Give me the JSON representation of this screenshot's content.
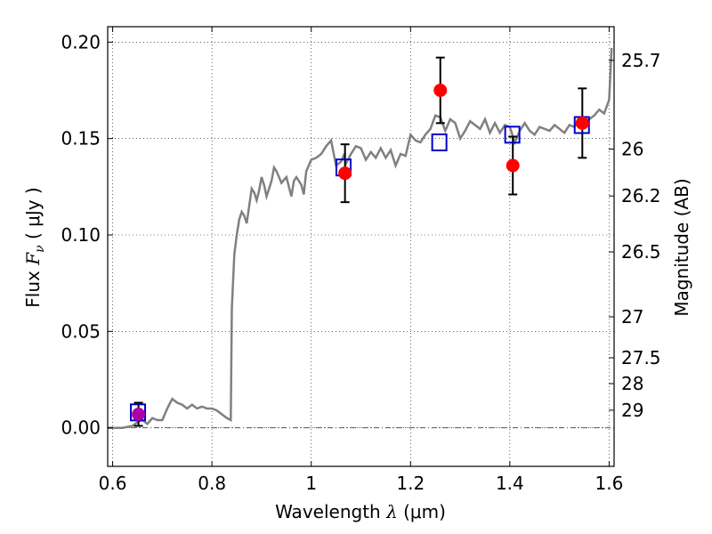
{
  "chart_data": {
    "type": "scatter",
    "title": "",
    "xlabel": "Wavelength  λ (μm)",
    "xlabel_prefix": "Wavelength  ",
    "xlabel_symbol": "λ",
    "xlabel_unit": " (μm)",
    "ylabel": "Flux  Fν  ( μJy )",
    "ylabel_prefix": "Flux  ",
    "ylabel_symbol": "F",
    "ylabel_subscript": "ν",
    "ylabel_unit": "  ( μJy )",
    "y2label": "Magnitude (AB)",
    "xlim": [
      0.59,
      1.61
    ],
    "ylim": [
      -0.02,
      0.208
    ],
    "grid": true,
    "x_ticks": [
      {
        "value": 0.6,
        "label": "0.6"
      },
      {
        "value": 0.8,
        "label": "0.8"
      },
      {
        "value": 1.0,
        "label": "1"
      },
      {
        "value": 1.2,
        "label": "1.2"
      },
      {
        "value": 1.4,
        "label": "1.4"
      },
      {
        "value": 1.6,
        "label": "1.6"
      }
    ],
    "y_ticks": [
      {
        "value": 0.0,
        "label": "0.00"
      },
      {
        "value": 0.05,
        "label": "0.05"
      },
      {
        "value": 0.1,
        "label": "0.10"
      },
      {
        "value": 0.15,
        "label": "0.15"
      },
      {
        "value": 0.2,
        "label": "0.20"
      }
    ],
    "magnitude_ticks": [
      {
        "value": 25.7,
        "label": "25.7"
      },
      {
        "value": 26,
        "label": "26"
      },
      {
        "value": 26.2,
        "label": "26.2"
      },
      {
        "value": 26.5,
        "label": "26.5"
      },
      {
        "value": 27,
        "label": "27"
      },
      {
        "value": 27.5,
        "label": "27.5"
      },
      {
        "value": 28,
        "label": "28"
      },
      {
        "value": 29,
        "label": "29"
      }
    ],
    "colors": {
      "model": "#808080",
      "observed": "#ff0000",
      "model_photometry": "#0000cc",
      "errorbar": "#000000",
      "first_point": "#aa00aa"
    },
    "series": [
      {
        "kind": "line",
        "x": [
          0.59,
          0.62,
          0.64,
          0.65,
          0.66,
          0.67,
          0.68,
          0.69,
          0.7,
          0.71,
          0.72,
          0.73,
          0.74,
          0.75,
          0.76,
          0.77,
          0.78,
          0.79,
          0.8,
          0.81,
          0.82,
          0.83,
          0.838,
          0.84,
          0.845,
          0.85,
          0.855,
          0.86,
          0.865,
          0.87,
          0.875,
          0.88,
          0.885,
          0.89,
          0.895,
          0.9,
          0.905,
          0.91,
          0.92,
          0.925,
          0.93,
          0.935,
          0.94,
          0.95,
          0.96,
          0.965,
          0.97,
          0.98,
          0.985,
          0.99,
          1.0,
          1.01,
          1.02,
          1.03,
          1.04,
          1.05,
          1.06,
          1.065,
          1.07,
          1.08,
          1.09,
          1.1,
          1.11,
          1.12,
          1.13,
          1.14,
          1.15,
          1.16,
          1.17,
          1.18,
          1.19,
          1.2,
          1.21,
          1.22,
          1.23,
          1.24,
          1.25,
          1.26,
          1.27,
          1.28,
          1.29,
          1.3,
          1.31,
          1.32,
          1.33,
          1.34,
          1.35,
          1.36,
          1.37,
          1.38,
          1.39,
          1.4,
          1.41,
          1.42,
          1.43,
          1.44,
          1.45,
          1.46,
          1.47,
          1.48,
          1.49,
          1.5,
          1.51,
          1.52,
          1.53,
          1.54,
          1.55,
          1.56,
          1.57,
          1.58,
          1.59,
          1.6,
          1.605
        ],
        "y": [
          0.0,
          0.0,
          0.001,
          0.003,
          0.004,
          0.002,
          0.005,
          0.004,
          0.004,
          0.01,
          0.015,
          0.013,
          0.012,
          0.01,
          0.012,
          0.01,
          0.011,
          0.01,
          0.01,
          0.009,
          0.007,
          0.005,
          0.004,
          0.062,
          0.09,
          0.1,
          0.108,
          0.112,
          0.11,
          0.106,
          0.115,
          0.124,
          0.122,
          0.118,
          0.123,
          0.13,
          0.126,
          0.12,
          0.128,
          0.135,
          0.133,
          0.13,
          0.127,
          0.13,
          0.12,
          0.128,
          0.13,
          0.126,
          0.121,
          0.133,
          0.139,
          0.14,
          0.142,
          0.146,
          0.149,
          0.136,
          0.138,
          0.141,
          0.137,
          0.142,
          0.146,
          0.145,
          0.139,
          0.143,
          0.14,
          0.145,
          0.14,
          0.144,
          0.136,
          0.142,
          0.141,
          0.152,
          0.149,
          0.148,
          0.152,
          0.155,
          0.162,
          0.161,
          0.154,
          0.16,
          0.158,
          0.15,
          0.154,
          0.159,
          0.157,
          0.155,
          0.16,
          0.153,
          0.158,
          0.153,
          0.157,
          0.156,
          0.148,
          0.154,
          0.158,
          0.154,
          0.152,
          0.156,
          0.155,
          0.154,
          0.157,
          0.155,
          0.153,
          0.157,
          0.156,
          0.16,
          0.158,
          0.16,
          0.162,
          0.165,
          0.163,
          0.17,
          0.197
        ]
      },
      {
        "kind": "model_photometry",
        "points": [
          {
            "x": 0.651,
            "y": 0.008
          },
          {
            "x": 1.065,
            "y": 0.135
          },
          {
            "x": 1.258,
            "y": 0.148
          },
          {
            "x": 1.405,
            "y": 0.152
          },
          {
            "x": 1.545,
            "y": 0.157
          }
        ]
      },
      {
        "kind": "observed",
        "points": [
          {
            "x": 0.652,
            "y": 0.007,
            "err": 0.006
          },
          {
            "x": 1.068,
            "y": 0.132,
            "err": 0.015
          },
          {
            "x": 1.26,
            "y": 0.175,
            "err": 0.017
          },
          {
            "x": 1.406,
            "y": 0.136,
            "err": 0.015
          },
          {
            "x": 1.546,
            "y": 0.158,
            "err": 0.018
          }
        ]
      }
    ]
  }
}
